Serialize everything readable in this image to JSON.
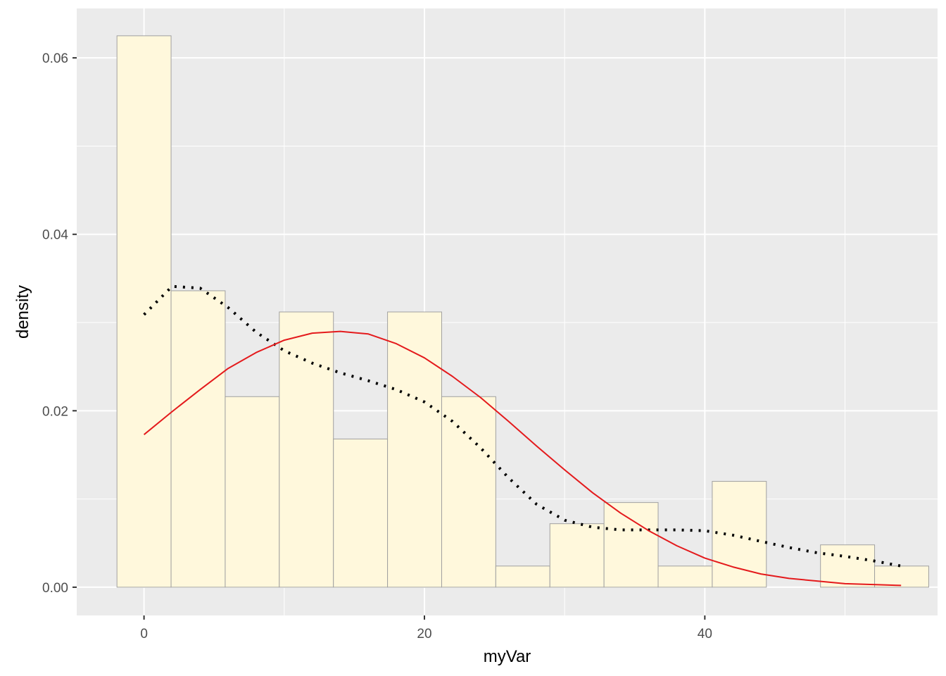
{
  "chart_data": {
    "type": "bar",
    "title": "",
    "xlabel": "myVar",
    "ylabel": "density",
    "xlim": [
      -4.8,
      56.6
    ],
    "ylim": [
      -0.0032,
      0.0656
    ],
    "x_ticks": [
      0,
      20,
      40
    ],
    "x_tick_labels": [
      "0",
      "20",
      "40"
    ],
    "y_ticks": [
      0,
      0.02,
      0.04,
      0.06
    ],
    "y_tick_labels": [
      "0.00",
      "0.02",
      "0.04",
      "0.06"
    ],
    "grid": true,
    "legend": "none",
    "histogram": {
      "bin_edges": [
        -1.93,
        1.93,
        5.79,
        9.65,
        13.51,
        17.37,
        21.23,
        25.09,
        28.95,
        32.81,
        36.67,
        40.53,
        44.39,
        48.25,
        52.11,
        55.97
      ],
      "values": [
        0.0625,
        0.0336,
        0.0216,
        0.0312,
        0.0168,
        0.0312,
        0.0216,
        0.0024,
        0.0072,
        0.0096,
        0.0024,
        0.012,
        0.0,
        0.0048,
        0.0024
      ],
      "fill": "#FFF8DC",
      "outline": "#A0A0A0"
    },
    "series": [
      {
        "style": "dotted",
        "color": "#000000",
        "x": [
          0,
          2,
          4,
          6,
          8,
          10,
          12,
          14,
          16,
          18,
          20,
          22,
          24,
          26,
          28,
          30,
          32,
          34,
          36,
          38,
          40,
          42,
          44,
          46,
          48,
          50,
          52,
          54
        ],
        "values": [
          0.0309,
          0.0341,
          0.0339,
          0.0317,
          0.0289,
          0.0268,
          0.0254,
          0.0243,
          0.0234,
          0.0224,
          0.021,
          0.0188,
          0.0158,
          0.0124,
          0.0094,
          0.0076,
          0.0068,
          0.0065,
          0.0065,
          0.0065,
          0.0064,
          0.0059,
          0.0052,
          0.0045,
          0.0039,
          0.0035,
          0.003,
          0.0024
        ]
      },
      {
        "style": "solid",
        "color": "#E41A1C",
        "x": [
          0,
          2,
          4,
          6,
          8,
          10,
          12,
          14,
          16,
          18,
          20,
          22,
          24,
          26,
          28,
          30,
          32,
          34,
          36,
          38,
          40,
          42,
          44,
          46,
          48,
          50,
          52,
          54
        ],
        "values": [
          0.0173,
          0.0199,
          0.0224,
          0.0248,
          0.0266,
          0.028,
          0.0288,
          0.029,
          0.0287,
          0.0276,
          0.026,
          0.0239,
          0.0215,
          0.0188,
          0.016,
          0.0133,
          0.0107,
          0.0084,
          0.0064,
          0.0047,
          0.0033,
          0.0023,
          0.0015,
          0.001,
          0.0007,
          0.0004,
          0.0003,
          0.0002
        ]
      }
    ]
  }
}
